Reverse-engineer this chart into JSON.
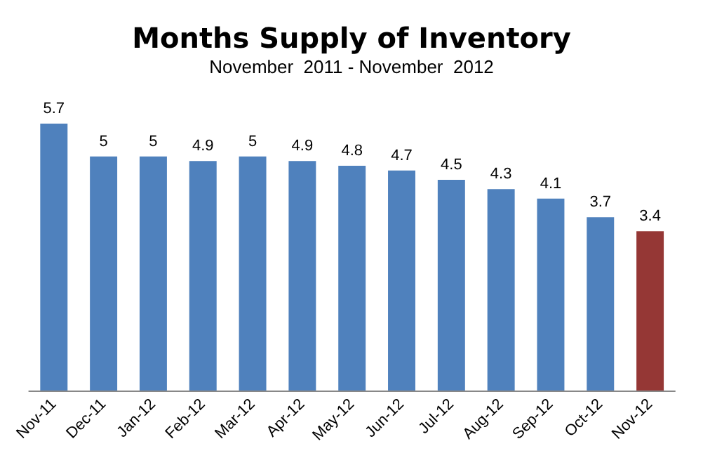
{
  "chart_data": {
    "type": "bar",
    "title": "Months Supply of Inventory",
    "subtitle": "November  2011 - November  2012",
    "categories": [
      "Nov-11",
      "Dec-11",
      "Jan-12",
      "Feb-12",
      "Mar-12",
      "Apr-12",
      "May-12",
      "Jun-12",
      "Jul-12",
      "Aug-12",
      "Sep-12",
      "Oct-12",
      "Nov-12"
    ],
    "values": [
      5.7,
      5,
      5,
      4.9,
      5,
      4.9,
      4.8,
      4.7,
      4.5,
      4.3,
      4.1,
      3.7,
      3.4
    ],
    "colors": [
      "#4f81bd",
      "#4f81bd",
      "#4f81bd",
      "#4f81bd",
      "#4f81bd",
      "#4f81bd",
      "#4f81bd",
      "#4f81bd",
      "#4f81bd",
      "#4f81bd",
      "#4f81bd",
      "#4f81bd",
      "#953735"
    ],
    "data_labels": true
  }
}
